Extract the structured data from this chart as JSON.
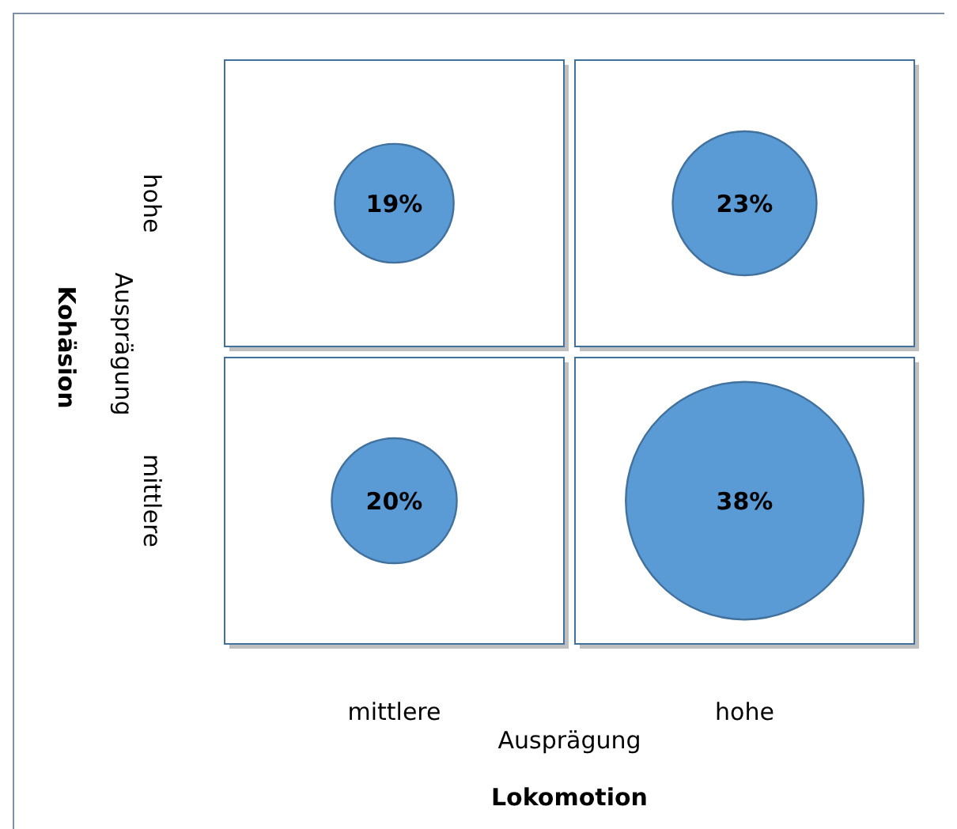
{
  "chart_data": {
    "type": "other",
    "categories": [
      "mittlere",
      "hohe"
    ],
    "y_categories": [
      "hohe",
      "mittlere"
    ],
    "series": [
      {
        "color": "#5b9bd5",
        "values": [
          19,
          23
        ],
        "value_labels": [
          "19%",
          "23%"
        ]
      },
      {
        "color": "#5b9bd5",
        "values": [
          20,
          38
        ],
        "value_labels": [
          "20%",
          "38%"
        ]
      }
    ],
    "xlabel": "Lokomotion",
    "ylabel": "Kohäsion",
    "annotations": [
      "Ausprägung",
      "Ausprägung"
    ]
  }
}
